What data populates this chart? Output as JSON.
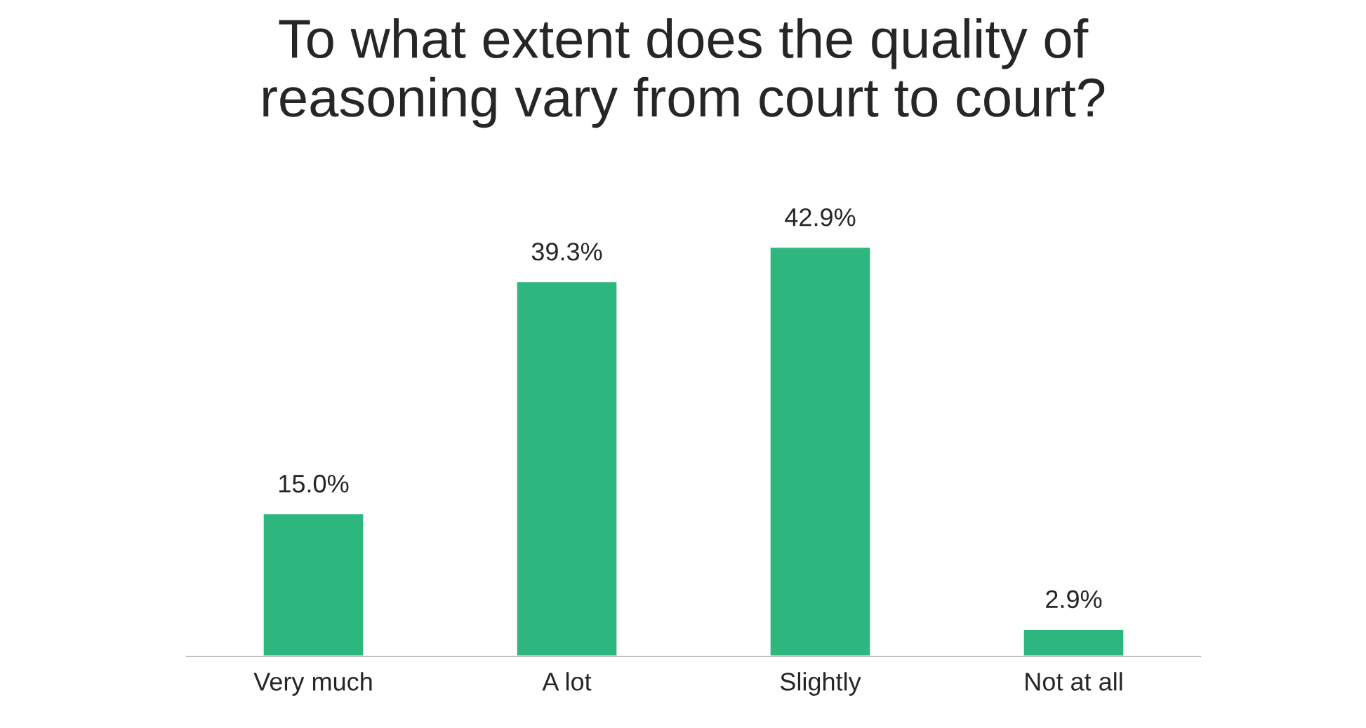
{
  "chart_data": {
    "type": "bar",
    "title": "To what extent does the quality of\nreasoning vary from court to court?",
    "categories": [
      "Very much",
      "A lot",
      "Slightly",
      "Not at all"
    ],
    "values": [
      15.0,
      39.3,
      42.9,
      2.9
    ],
    "value_labels": [
      "15.0%",
      "39.3%",
      "42.9%",
      "2.9%"
    ],
    "color": "#2db77f"
  }
}
